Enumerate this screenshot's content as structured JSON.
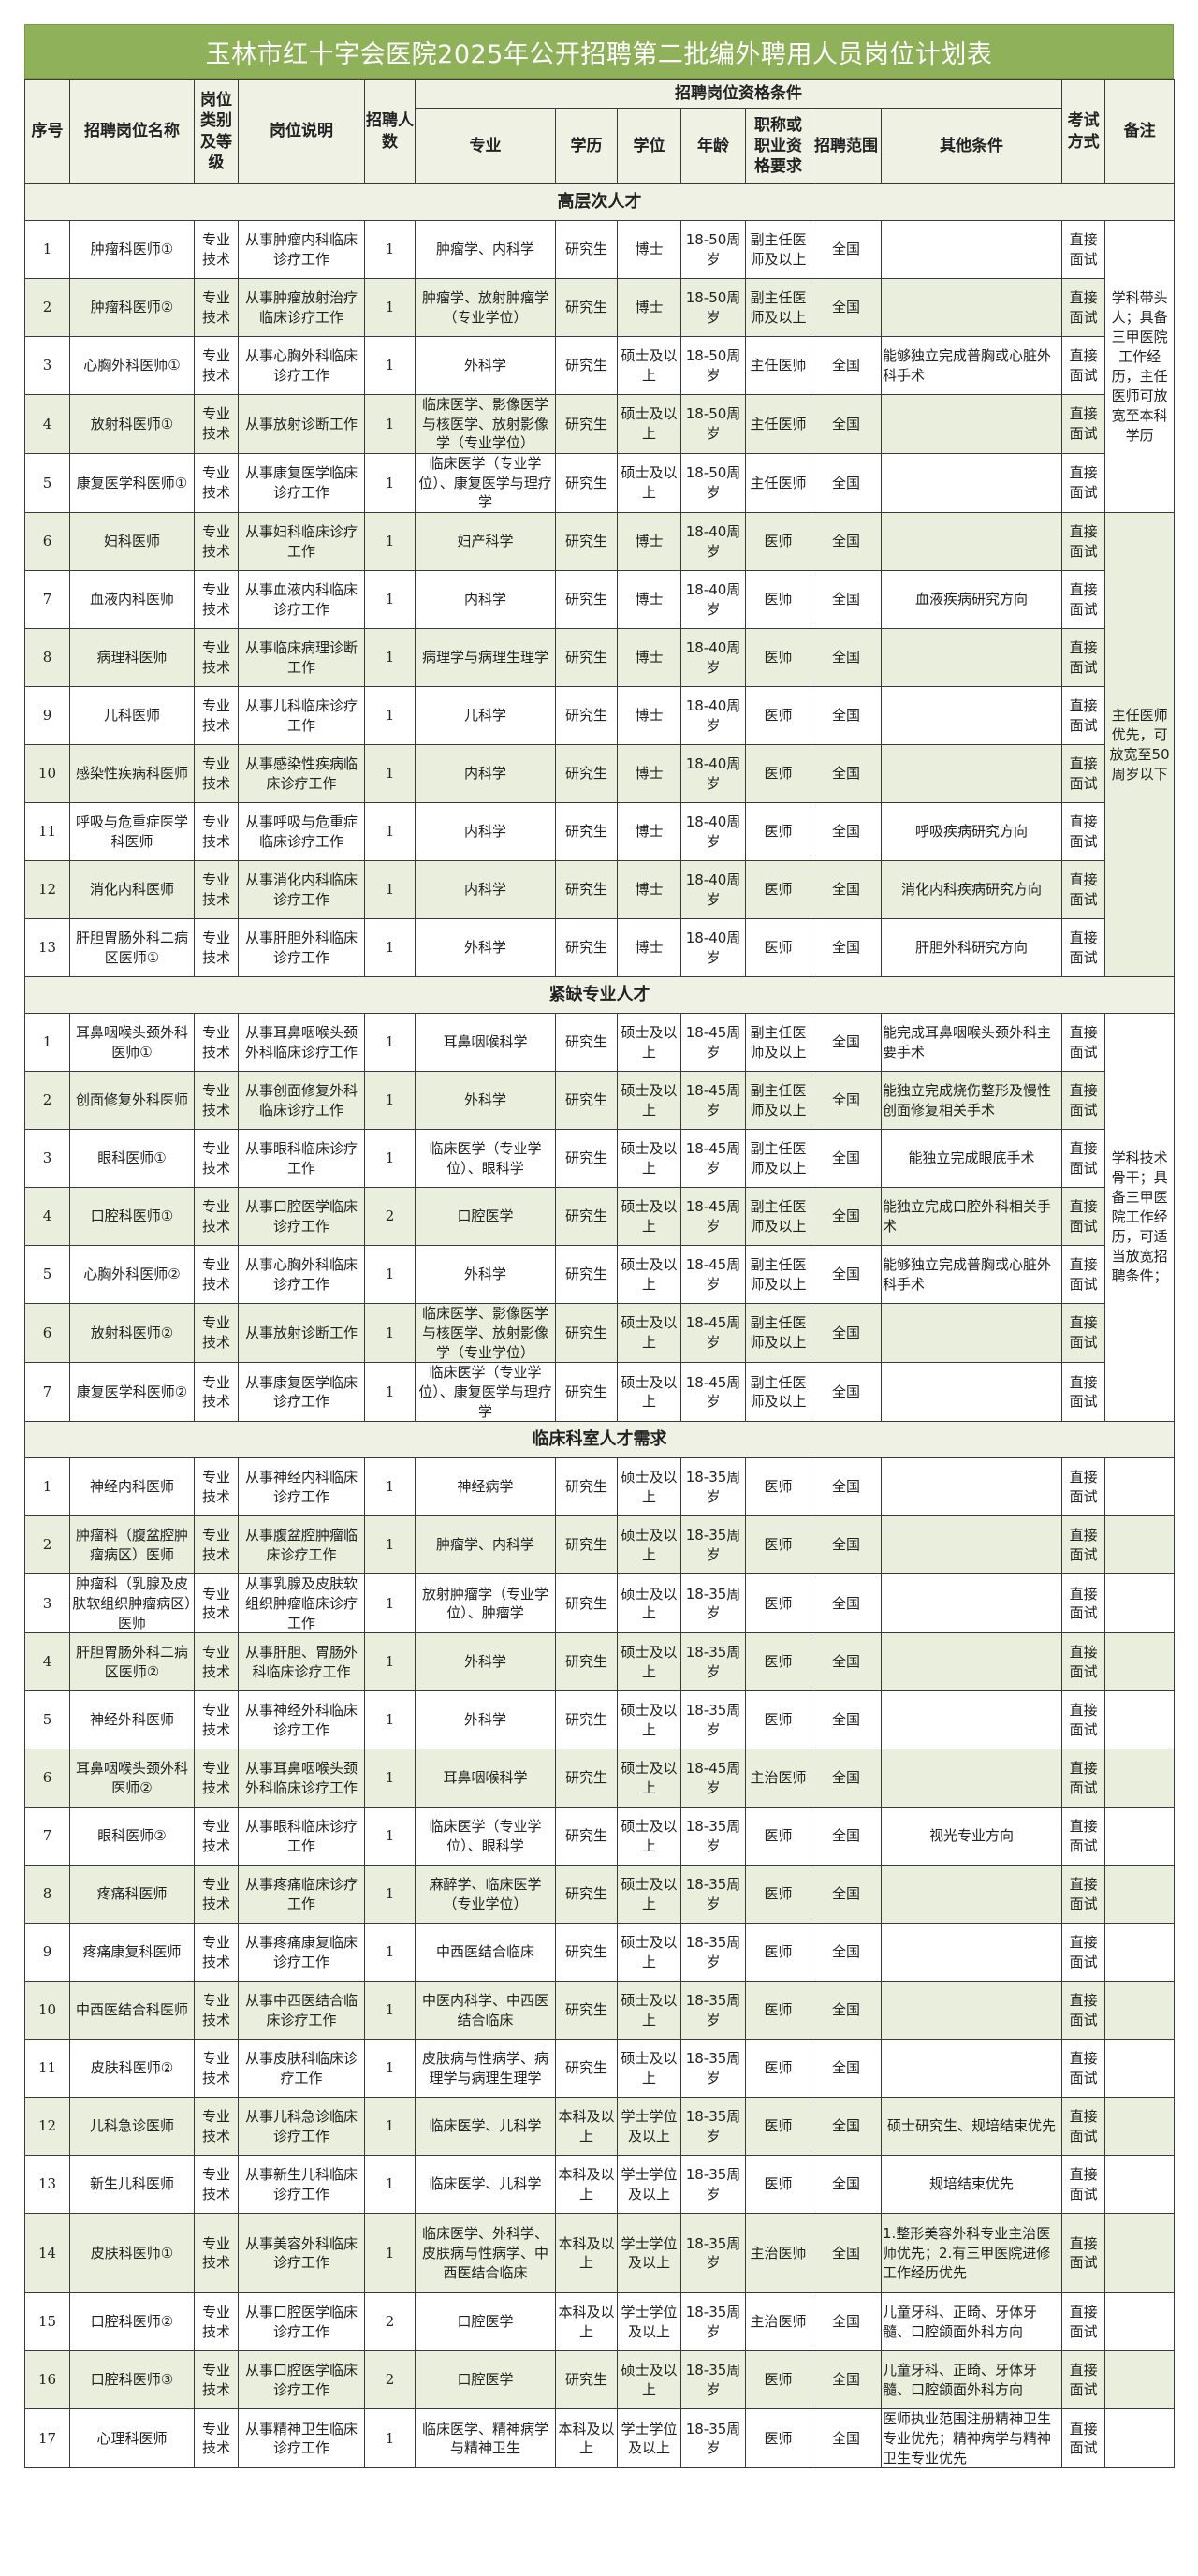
{
  "title": "玉林市红十字会医院2025年公开招聘第二批编外聘用人员岗位计划表",
  "headers": {
    "no": "序号",
    "name": "招聘岗位名称",
    "category": "岗位类别及等级",
    "desc": "岗位说明",
    "count": "招聘人数",
    "qualifications": "招聘岗位资格条件",
    "major": "专业",
    "edu": "学历",
    "degree": "学位",
    "age": "年龄",
    "title_req": "职称或职业资格要求",
    "scope": "招聘范围",
    "other": "其他条件",
    "exam": "考试方式",
    "remark": "备注"
  },
  "sections": [
    {
      "title": "高层次人才",
      "remarks": [
        "学科带头人；具备三甲医院工作经历，主任医师可放宽至本科学历",
        "主任医师优先，可放宽至50周岁以下"
      ],
      "rows": [
        [
          "1",
          "肿瘤科医师①",
          "专业技术",
          "从事肿瘤内科临床诊疗工作",
          "1",
          "肿瘤学、内科学",
          "研究生",
          "博士",
          "18-50周岁",
          "副主任医师及以上",
          "全国",
          "",
          "直接面试"
        ],
        [
          "2",
          "肿瘤科医师②",
          "专业技术",
          "从事肿瘤放射治疗临床诊疗工作",
          "1",
          "肿瘤学、放射肿瘤学（专业学位）",
          "研究生",
          "博士",
          "18-50周岁",
          "副主任医师及以上",
          "全国",
          "",
          "直接面试"
        ],
        [
          "3",
          "心胸外科医师①",
          "专业技术",
          "从事心胸外科临床诊疗工作",
          "1",
          "外科学",
          "研究生",
          "硕士及以上",
          "18-50周岁",
          "主任医师",
          "全国",
          "能够独立完成普胸或心脏外科手术",
          "直接面试"
        ],
        [
          "4",
          "放射科医师①",
          "专业技术",
          "从事放射诊断工作",
          "1",
          "临床医学、影像医学与核医学、放射影像学（专业学位）",
          "研究生",
          "硕士及以上",
          "18-50周岁",
          "主任医师",
          "全国",
          "",
          "直接面试"
        ],
        [
          "5",
          "康复医学科医师①",
          "专业技术",
          "从事康复医学临床诊疗工作",
          "1",
          "临床医学（专业学位）、康复医学与理疗学",
          "研究生",
          "硕士及以上",
          "18-50周岁",
          "主任医师",
          "全国",
          "",
          "直接面试"
        ],
        [
          "6",
          "妇科医师",
          "专业技术",
          "从事妇科临床诊疗工作",
          "1",
          "妇产科学",
          "研究生",
          "博士",
          "18-40周岁",
          "医师",
          "全国",
          "",
          "直接面试"
        ],
        [
          "7",
          "血液内科医师",
          "专业技术",
          "从事血液内科临床诊疗工作",
          "1",
          "内科学",
          "研究生",
          "博士",
          "18-40周岁",
          "医师",
          "全国",
          "血液疾病研究方向",
          "直接面试"
        ],
        [
          "8",
          "病理科医师",
          "专业技术",
          "从事临床病理诊断工作",
          "1",
          "病理学与病理生理学",
          "研究生",
          "博士",
          "18-40周岁",
          "医师",
          "全国",
          "",
          "直接面试"
        ],
        [
          "9",
          "儿科医师",
          "专业技术",
          "从事儿科临床诊疗工作",
          "1",
          "儿科学",
          "研究生",
          "博士",
          "18-40周岁",
          "医师",
          "全国",
          "",
          "直接面试"
        ],
        [
          "10",
          "感染性疾病科医师",
          "专业技术",
          "从事感染性疾病临床诊疗工作",
          "1",
          "内科学",
          "研究生",
          "博士",
          "18-40周岁",
          "医师",
          "全国",
          "",
          "直接面试"
        ],
        [
          "11",
          "呼吸与危重症医学科医师",
          "专业技术",
          "从事呼吸与危重症临床诊疗工作",
          "1",
          "内科学",
          "研究生",
          "博士",
          "18-40周岁",
          "医师",
          "全国",
          "呼吸疾病研究方向",
          "直接面试"
        ],
        [
          "12",
          "消化内科医师",
          "专业技术",
          "从事消化内科临床诊疗工作",
          "1",
          "内科学",
          "研究生",
          "博士",
          "18-40周岁",
          "医师",
          "全国",
          "消化内科疾病研究方向",
          "直接面试"
        ],
        [
          "13",
          "肝胆胃肠外科二病区医师①",
          "专业技术",
          "从事肝胆外科临床诊疗工作",
          "1",
          "外科学",
          "研究生",
          "博士",
          "18-40周岁",
          "医师",
          "全国",
          "肝胆外科研究方向",
          "直接面试"
        ]
      ]
    },
    {
      "title": "紧缺专业人才",
      "remarks": [
        "学科技术骨干；具备三甲医院工作经历，可适当放宽招聘条件；"
      ],
      "rows": [
        [
          "1",
          "耳鼻咽喉头颈外科医师①",
          "专业技术",
          "从事耳鼻咽喉头颈外科临床诊疗工作",
          "1",
          "耳鼻咽喉科学",
          "研究生",
          "硕士及以上",
          "18-45周岁",
          "副主任医师及以上",
          "全国",
          "能完成耳鼻咽喉头颈外科主要手术",
          "直接面试"
        ],
        [
          "2",
          "创面修复外科医师",
          "专业技术",
          "从事创面修复外科临床诊疗工作",
          "1",
          "外科学",
          "研究生",
          "硕士及以上",
          "18-45周岁",
          "副主任医师及以上",
          "全国",
          "能独立完成烧伤整形及慢性创面修复相关手术",
          "直接面试"
        ],
        [
          "3",
          "眼科医师①",
          "专业技术",
          "从事眼科临床诊疗工作",
          "1",
          "临床医学（专业学位）、眼科学",
          "研究生",
          "硕士及以上",
          "18-45周岁",
          "副主任医师及以上",
          "全国",
          "能独立完成眼底手术",
          "直接面试"
        ],
        [
          "4",
          "口腔科医师①",
          "专业技术",
          "从事口腔医学临床诊疗工作",
          "2",
          "口腔医学",
          "研究生",
          "硕士及以上",
          "18-45周岁",
          "副主任医师及以上",
          "全国",
          "能独立完成口腔外科相关手术",
          "直接面试"
        ],
        [
          "5",
          "心胸外科医师②",
          "专业技术",
          "从事心胸外科临床诊疗工作",
          "1",
          "外科学",
          "研究生",
          "硕士及以上",
          "18-45周岁",
          "副主任医师及以上",
          "全国",
          "能够独立完成普胸或心脏外科手术",
          "直接面试"
        ],
        [
          "6",
          "放射科医师②",
          "专业技术",
          "从事放射诊断工作",
          "1",
          "临床医学、影像医学与核医学、放射影像学（专业学位）",
          "研究生",
          "硕士及以上",
          "18-45周岁",
          "副主任医师及以上",
          "全国",
          "",
          "直接面试"
        ],
        [
          "7",
          "康复医学科医师②",
          "专业技术",
          "从事康复医学临床诊疗工作",
          "1",
          "临床医学（专业学位）、康复医学与理疗学",
          "研究生",
          "硕士及以上",
          "18-45周岁",
          "副主任医师及以上",
          "全国",
          "",
          "直接面试"
        ]
      ]
    },
    {
      "title": "临床科室人才需求",
      "remarks": [],
      "rows": [
        [
          "1",
          "神经内科医师",
          "专业技术",
          "从事神经内科临床诊疗工作",
          "1",
          "神经病学",
          "研究生",
          "硕士及以上",
          "18-35周岁",
          "医师",
          "全国",
          "",
          "直接面试"
        ],
        [
          "2",
          "肿瘤科（腹盆腔肿瘤病区）医师",
          "专业技术",
          "从事腹盆腔肿瘤临床诊疗工作",
          "1",
          "肿瘤学、内科学",
          "研究生",
          "硕士及以上",
          "18-35周岁",
          "医师",
          "全国",
          "",
          "直接面试"
        ],
        [
          "3",
          "肿瘤科（乳腺及皮肤软组织肿瘤病区）医师",
          "专业技术",
          "从事乳腺及皮肤软组织肿瘤临床诊疗工作",
          "1",
          "放射肿瘤学（专业学位）、肿瘤学",
          "研究生",
          "硕士及以上",
          "18-35周岁",
          "医师",
          "全国",
          "",
          "直接面试"
        ],
        [
          "4",
          "肝胆胃肠外科二病区医师②",
          "专业技术",
          "从事肝胆、胃肠外科临床诊疗工作",
          "1",
          "外科学",
          "研究生",
          "硕士及以上",
          "18-35周岁",
          "医师",
          "全国",
          "",
          "直接面试"
        ],
        [
          "5",
          "神经外科医师",
          "专业技术",
          "从事神经外科临床诊疗工作",
          "1",
          "外科学",
          "研究生",
          "硕士及以上",
          "18-35周岁",
          "医师",
          "全国",
          "",
          "直接面试"
        ],
        [
          "6",
          "耳鼻咽喉头颈外科医师②",
          "专业技术",
          "从事耳鼻咽喉头颈外科临床诊疗工作",
          "1",
          "耳鼻咽喉科学",
          "研究生",
          "硕士及以上",
          "18-45周岁",
          "主治医师",
          "全国",
          "",
          "直接面试"
        ],
        [
          "7",
          "眼科医师②",
          "专业技术",
          "从事眼科临床诊疗工作",
          "1",
          "临床医学（专业学位）、眼科学",
          "研究生",
          "硕士及以上",
          "18-35周岁",
          "医师",
          "全国",
          "视光专业方向",
          "直接面试"
        ],
        [
          "8",
          "疼痛科医师",
          "专业技术",
          "从事疼痛临床诊疗工作",
          "1",
          "麻醉学、临床医学（专业学位）",
          "研究生",
          "硕士及以上",
          "18-35周岁",
          "医师",
          "全国",
          "",
          "直接面试"
        ],
        [
          "9",
          "疼痛康复科医师",
          "专业技术",
          "从事疼痛康复临床诊疗工作",
          "1",
          "中西医结合临床",
          "研究生",
          "硕士及以上",
          "18-35周岁",
          "医师",
          "全国",
          "",
          "直接面试"
        ],
        [
          "10",
          "中西医结合科医师",
          "专业技术",
          "从事中西医结合临床诊疗工作",
          "1",
          "中医内科学、中西医结合临床",
          "研究生",
          "硕士及以上",
          "18-35周岁",
          "医师",
          "全国",
          "",
          "直接面试"
        ],
        [
          "11",
          "皮肤科医师②",
          "专业技术",
          "从事皮肤科临床诊疗工作",
          "1",
          "皮肤病与性病学、病理学与病理生理学",
          "研究生",
          "硕士及以上",
          "18-35周岁",
          "医师",
          "全国",
          "",
          "直接面试"
        ],
        [
          "12",
          "儿科急诊医师",
          "专业技术",
          "从事儿科急诊临床诊疗工作",
          "1",
          "临床医学、儿科学",
          "本科及以上",
          "学士学位及以上",
          "18-35周岁",
          "医师",
          "全国",
          "硕士研究生、规培结束优先",
          "直接面试"
        ],
        [
          "13",
          "新生儿科医师",
          "专业技术",
          "从事新生儿科临床诊疗工作",
          "1",
          "临床医学、儿科学",
          "本科及以上",
          "学士学位及以上",
          "18-35周岁",
          "医师",
          "全国",
          "规培结束优先",
          "直接面试"
        ],
        [
          "14",
          "皮肤科医师①",
          "专业技术",
          "从事美容外科临床诊疗工作",
          "1",
          "临床医学、外科学、皮肤病与性病学、中西医结合临床",
          "本科及以上",
          "学士学位及以上",
          "18-35周岁",
          "主治医师",
          "全国",
          "1.整形美容外科专业主治医师优先；2.有三甲医院进修工作经历优先",
          "直接面试"
        ],
        [
          "15",
          "口腔科医师②",
          "专业技术",
          "从事口腔医学临床诊疗工作",
          "2",
          "口腔医学",
          "本科及以上",
          "学士学位及以上",
          "18-35周岁",
          "主治医师",
          "全国",
          "儿童牙科、正畸、牙体牙髓、口腔颌面外科方向",
          "直接面试"
        ],
        [
          "16",
          "口腔科医师③",
          "专业技术",
          "从事口腔医学临床诊疗工作",
          "2",
          "口腔医学",
          "研究生",
          "硕士及以上",
          "18-35周岁",
          "医师",
          "全国",
          "儿童牙科、正畸、牙体牙髓、口腔颌面外科方向",
          "直接面试"
        ],
        [
          "17",
          "心理科医师",
          "专业技术",
          "从事精神卫生临床诊疗工作",
          "1",
          "临床医学、精神病学与精神卫生",
          "本科及以上",
          "学士学位及以上",
          "18-35周岁",
          "医师",
          "全国",
          "医师执业范围注册精神卫生专业优先；精神病学与精神卫生专业优先",
          "直接面试"
        ]
      ]
    }
  ]
}
